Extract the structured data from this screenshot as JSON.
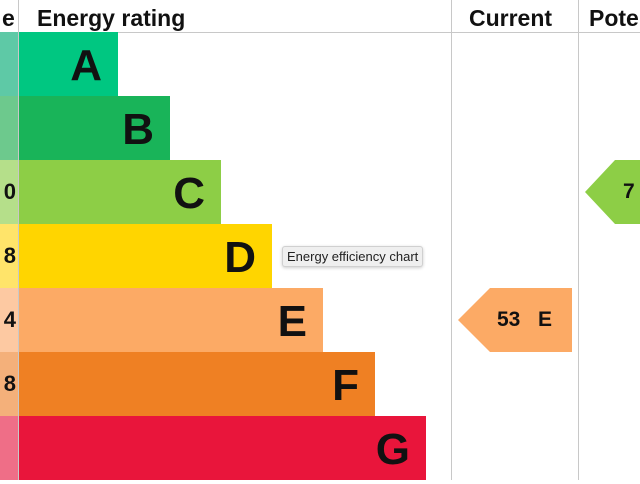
{
  "headers": {
    "score": "e",
    "rating": "Energy rating",
    "current": "Current",
    "potential": "Pote"
  },
  "chart_data": {
    "type": "bar",
    "title": "",
    "categories": [
      "A",
      "B",
      "C",
      "D",
      "E",
      "F",
      "G"
    ],
    "score_partial": [
      "",
      "",
      "0",
      "8",
      "4",
      "8",
      ""
    ],
    "colors": [
      "#00c781",
      "#19b459",
      "#8dce46",
      "#ffd500",
      "#fcaa65",
      "#ef8023",
      "#e9153b"
    ],
    "score_colors": [
      "#5ec9a6",
      "#6dc98d",
      "#b5df8a",
      "#ffe46a",
      "#fdc9a2",
      "#f4b07a",
      "#ef6e87"
    ],
    "current": {
      "value": "53",
      "band": "E",
      "color": "#fcaa65"
    },
    "potential": {
      "value": "7",
      "band": "C",
      "color": "#8dce46"
    }
  },
  "tooltip": "Energy efficiency chart"
}
